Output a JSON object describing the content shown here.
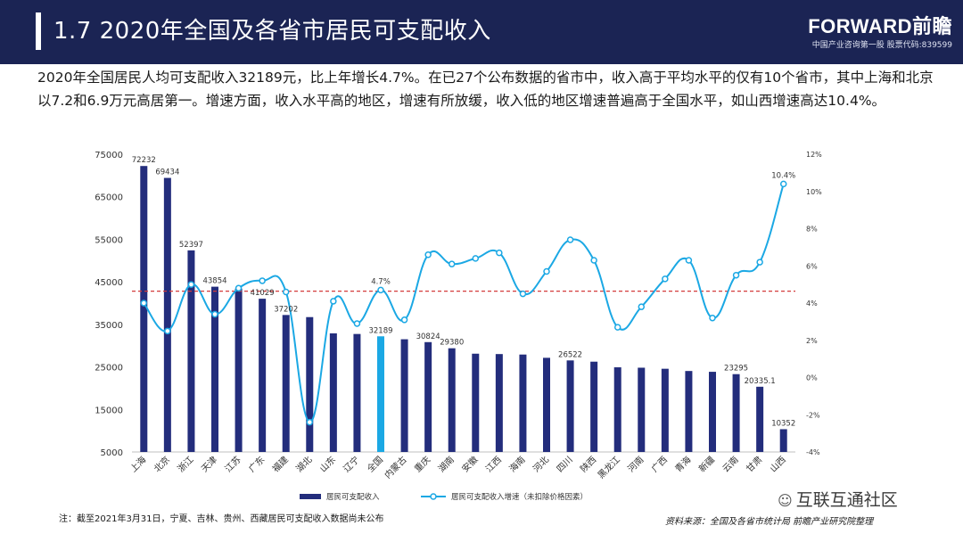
{
  "header": {
    "title": "1.7 2020年全国及各省市居民可支配收入",
    "brand_name": "FORWARD前瞻",
    "brand_sub": "中国产业咨询第一股  股票代码:839599"
  },
  "intro": "2020年全国居民人均可支配收入32189元，比上年增长4.7%。在已27个公布数据的省市中，收入高于平均水平的仅有10个省市，其中上海和北京以7.2和6.9万元高居第一。增速方面，收入水平高的地区，增速有所放缓，收入低的地区增速普遍高于全国水平，如山西增速高达10.4%。",
  "chart_data": {
    "type": "bar",
    "categories": [
      "上海",
      "北京",
      "浙江",
      "天津",
      "江苏",
      "广东",
      "福建",
      "湖北",
      "山东",
      "辽宁",
      "全国",
      "内蒙古",
      "重庆",
      "湖南",
      "安徽",
      "江西",
      "海南",
      "河北",
      "四川",
      "陕西",
      "黑龙江",
      "河南",
      "广西",
      "青海",
      "新疆",
      "云南",
      "甘肃",
      "山西"
    ],
    "series": [
      {
        "name": "居民可支配收入",
        "type": "bar",
        "axis": "left",
        "color": "#232d7c",
        "highlight_index": 10,
        "highlight_color": "#1ba8e4",
        "values": [
          72232,
          69434,
          52397,
          43854,
          43390,
          41029,
          37202,
          36706,
          32886,
          32738,
          32189,
          31497,
          30824,
          29380,
          28103,
          28017,
          27904,
          27136,
          26522,
          26226,
          24902,
          24810,
          24562,
          24037,
          23845,
          23295,
          20335.1,
          10352
        ],
        "data_labels": {
          "0": "72232",
          "1": "69434",
          "2": "52397",
          "3": "43854",
          "5": "41029",
          "6": "37202",
          "10": "32189",
          "12": "30824",
          "13": "29380",
          "18": "26522",
          "25": "23295",
          "26": "20335.1",
          "27": "10352"
        }
      },
      {
        "name": "居民可支配收入增速（未扣除价格因素）",
        "type": "line",
        "axis": "right",
        "color": "#1ba8e4",
        "values": [
          4.0,
          2.5,
          5.0,
          3.4,
          4.8,
          5.2,
          4.6,
          -2.4,
          4.1,
          2.9,
          4.7,
          3.1,
          6.6,
          6.1,
          6.4,
          6.7,
          4.5,
          5.7,
          7.4,
          6.3,
          2.7,
          3.8,
          5.3,
          6.3,
          3.2,
          5.5,
          6.2,
          10.4
        ],
        "data_labels": {
          "10": "4.7%",
          "27": "10.4%"
        }
      }
    ],
    "reference_line": {
      "axis": "left",
      "value": 42800,
      "color": "#d43c3c",
      "style": "dashed"
    },
    "yaxis_left": {
      "min": 5000,
      "max": 75000,
      "ticks": [
        "5000",
        "15000",
        "25000",
        "35000",
        "45000",
        "55000",
        "65000",
        "75000"
      ]
    },
    "yaxis_right": {
      "min": -4,
      "max": 12,
      "ticks": [
        "-4%",
        "-2%",
        "0%",
        "2%",
        "4%",
        "6%",
        "8%",
        "10%",
        "12%"
      ]
    },
    "legend_placement": "bottom-center",
    "grid": false
  },
  "footer": {
    "note": "注：截至2021年3月31日，宁夏、吉林、贵州、西藏居民可支配收入数据尚未公布",
    "source": "资料来源：全国及各省市统计局  前瞻产业研究院整理",
    "watermark_badge": "互联互通社区",
    "watermark_icon": "wechat-icon"
  }
}
